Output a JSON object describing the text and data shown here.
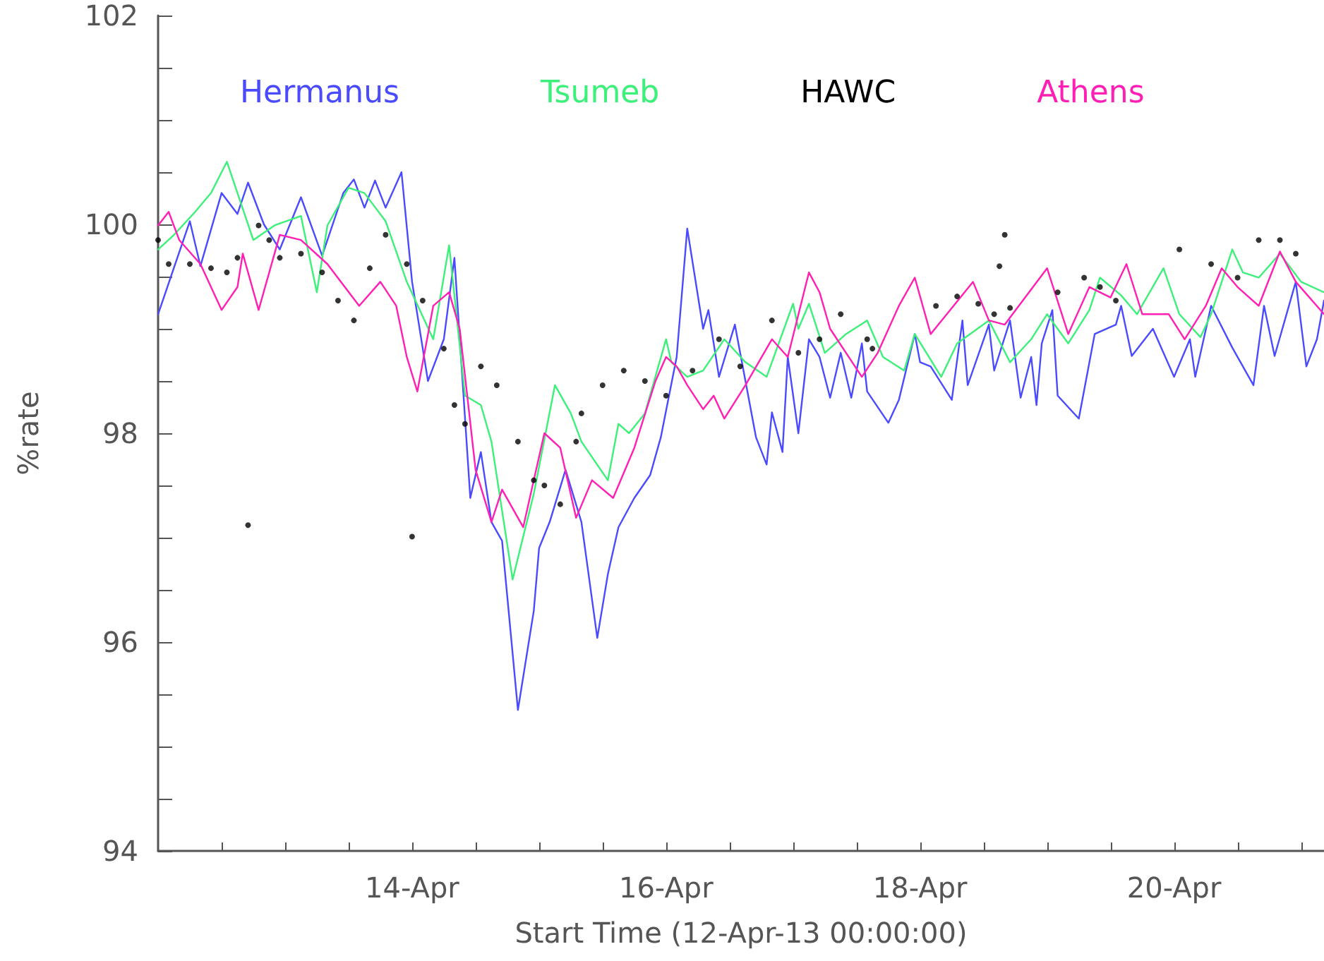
{
  "chart_data": {
    "type": "line",
    "xlabel": "Start Time (12-Apr-13 00:00:00)",
    "ylabel": "%rate",
    "xlim": [
      "--04-12T00:00",
      "--04-21T04:20"
    ],
    "ylim": [
      94,
      102
    ],
    "yticks": [
      94,
      {
        "value": 94.5,
        "label": null
      },
      {
        "value": 95,
        "label": null
      },
      {
        "value": 95.5,
        "label": null
      },
      96,
      {
        "value": 96.5,
        "label": null
      },
      {
        "value": 97,
        "label": null
      },
      {
        "value": 97.5,
        "label": null
      },
      98,
      {
        "value": 98.5,
        "label": null
      },
      {
        "value": 99,
        "label": null
      },
      {
        "value": 99.5,
        "label": null
      },
      100,
      {
        "value": 100.5,
        "label": null
      },
      {
        "value": 101,
        "label": null
      },
      {
        "value": 101.5,
        "label": null
      },
      102
    ],
    "xticks": [
      {
        "value": "--04-12T12:00",
        "label": null
      },
      {
        "value": "--04-13T00:00",
        "label": null
      },
      {
        "value": "--04-13T12:00",
        "label": null
      },
      {
        "value": "--04-14T00:00",
        "label": "14-Apr"
      },
      {
        "value": "--04-14T12:00",
        "label": null
      },
      {
        "value": "--04-15T00:00",
        "label": null
      },
      {
        "value": "--04-15T12:00",
        "label": null
      },
      {
        "value": "--04-16T00:00",
        "label": "16-Apr"
      },
      {
        "value": "--04-16T12:00",
        "label": null
      },
      {
        "value": "--04-17T00:00",
        "label": null
      },
      {
        "value": "--04-17T12:00",
        "label": null
      },
      {
        "value": "--04-18T00:00",
        "label": "18-Apr"
      },
      {
        "value": "--04-18T12:00",
        "label": null
      },
      {
        "value": "--04-19T00:00",
        "label": null
      },
      {
        "value": "--04-19T12:00",
        "label": null
      },
      {
        "value": "--04-20T00:00",
        "label": "20-Apr"
      },
      {
        "value": "--04-20T12:00",
        "label": null
      },
      {
        "value": "--04-21T00:00",
        "label": null
      }
    ],
    "grid": false,
    "legend": "top",
    "marker": "none",
    "series": [
      {
        "name": "Hermanus",
        "color": "#4a4aff",
        "x": [
          "--04-12T00:00",
          "--04-12T06:00",
          "--04-12T08:00",
          "--04-12T12:00",
          "--04-12T15:00",
          "--04-12T17:00",
          "--04-12T20:00",
          "--04-12T23:00",
          "--04-13T03:00",
          "--04-13T07:00",
          "--04-13T11:00",
          "--04-13T13:00",
          "--04-13T15:00",
          "--04-13T17:00",
          "--04-13T19:00",
          "--04-13T22:00",
          "--04-14T00:00",
          "--04-14T03:00",
          "--04-14T06:00",
          "--04-14T08:00",
          "--04-14T11:00",
          "--04-14T13:00",
          "--04-14T15:00",
          "--04-14T17:00",
          "--04-14T20:00",
          "--04-14T23:00",
          "--04-15T00:00",
          "--04-15T02:00",
          "--04-15T05:00",
          "--04-15T08:00",
          "--04-15T11:00",
          "--04-15T13:00",
          "--04-15T15:00",
          "--04-15T18:00",
          "--04-15T21:00",
          "--04-15T23:00",
          "--04-16T02:00",
          "--04-16T04:00",
          "--04-16T07:00",
          "--04-16T08:00",
          "--04-16T10:00",
          "--04-16T13:00",
          "--04-16T17:00",
          "--04-16T19:00",
          "--04-16T20:00",
          "--04-16T22:00",
          "--04-16T23:00",
          "--04-17T01:00",
          "--04-17T03:00",
          "--04-17T05:00",
          "--04-17T07:00",
          "--04-17T09:00",
          "--04-17T11:00",
          "--04-17T13:00",
          "--04-17T14:00",
          "--04-17T18:00",
          "--04-17T20:00",
          "--04-17T23:00",
          "--04-18T00:00",
          "--04-18T02:00",
          "--04-18T06:00",
          "--04-18T08:00",
          "--04-18T09:00",
          "--04-18T13:00",
          "--04-18T14:00",
          "--04-18T17:00",
          "--04-18T19:00",
          "--04-18T21:00",
          "--04-18T22:00",
          "--04-18T23:00",
          "--04-19T01:00",
          "--04-19T02:00",
          "--04-19T06:00",
          "--04-19T09:00",
          "--04-19T13:00",
          "--04-19T14:00",
          "--04-19T16:00",
          "--04-19T20:00",
          "--04-20T00:00",
          "--04-20T03:00",
          "--04-20T04:00",
          "--04-20T07:00",
          "--04-20T11:00",
          "--04-20T15:00",
          "--04-20T17:00",
          "--04-20T19:00",
          "--04-20T23:00",
          "--04-21T01:00",
          "--04-21T03:00",
          "--04-21T04:20"
        ],
        "values": [
          99.14,
          100.03,
          99.6,
          100.3,
          100.1,
          100.4,
          100.0,
          99.76,
          100.26,
          99.7,
          100.3,
          100.43,
          100.16,
          100.42,
          100.16,
          100.5,
          99.45,
          98.5,
          98.9,
          99.68,
          97.38,
          97.82,
          97.15,
          96.97,
          95.35,
          96.3,
          96.9,
          97.15,
          97.65,
          97.15,
          96.04,
          96.65,
          97.1,
          97.38,
          97.6,
          97.96,
          98.73,
          99.96,
          99.0,
          99.18,
          98.54,
          99.04,
          97.96,
          97.7,
          98.2,
          97.82,
          98.73,
          98.0,
          98.9,
          98.73,
          98.34,
          98.77,
          98.34,
          98.86,
          98.4,
          98.1,
          98.32,
          98.95,
          98.68,
          98.64,
          98.32,
          99.08,
          98.46,
          99.04,
          98.6,
          99.08,
          98.34,
          98.73,
          98.27,
          98.86,
          99.18,
          98.36,
          98.14,
          98.95,
          99.04,
          99.22,
          98.74,
          99.0,
          98.54,
          98.9,
          98.54,
          99.22,
          98.82,
          98.46,
          99.22,
          98.74,
          99.45,
          98.64,
          98.9,
          99.27
        ]
      },
      {
        "name": "Tsumeb",
        "color": "#3cf07a",
        "x": [
          "--04-12T00:00",
          "--04-12T03:00",
          "--04-12T07:00",
          "--04-12T10:00",
          "--04-12T13:00",
          "--04-12T18:00",
          "--04-12T22:00",
          "--04-13T03:00",
          "--04-13T06:00",
          "--04-13T08:00",
          "--04-13T12:00",
          "--04-13T15:00",
          "--04-13T19:00",
          "--04-13T23:00",
          "--04-14T04:00",
          "--04-14T07:00",
          "--04-14T10:00",
          "--04-14T13:00",
          "--04-14T15:00",
          "--04-14T19:00",
          "--04-14T23:00",
          "--04-15T03:00",
          "--04-15T06:00",
          "--04-15T08:00",
          "--04-15T13:00",
          "--04-15T15:00",
          "--04-15T17:00",
          "--04-15T20:00",
          "--04-16T00:00",
          "--04-16T01:00",
          "--04-16T04:00",
          "--04-16T07:00",
          "--04-16T11:00",
          "--04-16T15:00",
          "--04-16T19:00",
          "--04-17T00:00",
          "--04-17T01:00",
          "--04-17T03:00",
          "--04-17T06:00",
          "--04-17T10:00",
          "--04-17T14:00",
          "--04-17T17:00",
          "--04-17T21:00",
          "--04-17T23:00",
          "--04-18T04:00",
          "--04-18T07:00",
          "--04-18T13:00",
          "--04-18T17:00",
          "--04-18T21:00",
          "--04-19T00:00",
          "--04-19T04:00",
          "--04-19T08:00",
          "--04-19T10:00",
          "--04-19T14:00",
          "--04-19T17:00",
          "--04-19T22:00",
          "--04-20T01:00",
          "--04-20T05:00",
          "--04-20T07:00",
          "--04-20T11:00",
          "--04-20T13:00",
          "--04-20T16:00",
          "--04-20T20:00",
          "--04-21T00:00",
          "--04-21T04:20"
        ],
        "values": [
          99.76,
          99.9,
          100.12,
          100.3,
          100.6,
          99.85,
          99.99,
          100.08,
          99.35,
          99.99,
          100.35,
          100.3,
          100.03,
          99.45,
          98.9,
          99.8,
          98.36,
          98.27,
          97.92,
          96.6,
          97.42,
          98.46,
          98.19,
          97.92,
          97.55,
          98.09,
          98.0,
          98.19,
          98.9,
          98.68,
          98.54,
          98.6,
          98.9,
          98.68,
          98.54,
          99.24,
          99.0,
          99.24,
          98.77,
          98.95,
          99.08,
          98.73,
          98.6,
          98.95,
          98.54,
          98.86,
          99.08,
          98.68,
          98.9,
          99.14,
          98.86,
          99.18,
          99.49,
          99.32,
          99.14,
          99.58,
          99.14,
          98.92,
          99.14,
          99.76,
          99.54,
          99.49,
          99.72,
          99.45,
          99.35
        ]
      },
      {
        "name": "HAWC",
        "color": "#000000",
        "type": "scatter",
        "marker": "circle",
        "x": [
          "--04-12T00:00",
          "--04-12T02:00",
          "--04-12T06:00",
          "--04-12T10:00",
          "--04-12T13:00",
          "--04-12T15:00",
          "--04-12T17:00",
          "--04-12T19:00",
          "--04-12T21:00",
          "--04-12T23:00",
          "--04-13T03:00",
          "--04-13T07:00",
          "--04-13T10:00",
          "--04-13T13:00",
          "--04-13T16:00",
          "--04-13T19:00",
          "--04-13T23:00",
          "--04-14T00:00",
          "--04-14T02:00",
          "--04-14T06:00",
          "--04-14T08:00",
          "--04-14T10:00",
          "--04-14T13:00",
          "--04-14T16:00",
          "--04-14T20:00",
          "--04-14T23:00",
          "--04-15T01:00",
          "--04-15T04:00",
          "--04-15T07:00",
          "--04-15T08:00",
          "--04-15T12:00",
          "--04-15T16:00",
          "--04-15T20:00",
          "--04-16T00:00",
          "--04-16T05:00",
          "--04-16T10:00",
          "--04-16T14:00",
          "--04-16T20:00",
          "--04-17T01:00",
          "--04-17T05:00",
          "--04-17T09:00",
          "--04-17T14:00",
          "--04-17T15:00",
          "--04-18T03:00",
          "--04-18T07:00",
          "--04-18T11:00",
          "--04-18T14:00",
          "--04-18T15:00",
          "--04-18T16:00",
          "--04-18T17:00",
          "--04-19T02:00",
          "--04-19T07:00",
          "--04-19T10:00",
          "--04-19T13:00",
          "--04-20T01:00",
          "--04-20T07:00",
          "--04-20T12:00",
          "--04-20T16:00",
          "--04-20T20:00",
          "--04-20T23:00"
        ],
        "values": [
          99.85,
          99.62,
          99.62,
          99.58,
          99.54,
          99.68,
          97.12,
          99.99,
          99.85,
          99.68,
          99.72,
          99.54,
          99.27,
          99.08,
          99.58,
          99.9,
          99.62,
          97.01,
          99.27,
          98.81,
          98.27,
          98.09,
          98.64,
          98.46,
          97.92,
          97.55,
          97.5,
          97.32,
          97.92,
          98.19,
          98.46,
          98.6,
          98.5,
          98.36,
          98.6,
          98.9,
          98.64,
          99.08,
          98.77,
          98.9,
          99.14,
          98.9,
          98.81,
          99.22,
          99.31,
          99.24,
          99.14,
          99.6,
          99.9,
          99.2,
          99.35,
          99.49,
          99.4,
          99.27,
          99.76,
          99.62,
          99.49,
          99.85,
          99.85,
          99.72
        ]
      },
      {
        "name": "Athens",
        "color": "#ff1fb4",
        "x": [
          "--04-12T00:00",
          "--04-12T02:00",
          "--04-12T04:00",
          "--04-12T08:00",
          "--04-12T12:00",
          "--04-12T15:00",
          "--04-12T16:00",
          "--04-12T19:00",
          "--04-12T23:00",
          "--04-13T03:00",
          "--04-13T08:00",
          "--04-13T14:00",
          "--04-13T18:00",
          "--04-13T21:00",
          "--04-13T23:00",
          "--04-14T01:00",
          "--04-14T04:00",
          "--04-14T07:00",
          "--04-14T09:00",
          "--04-14T12:00",
          "--04-14T15:00",
          "--04-14T17:00",
          "--04-14T21:00",
          "--04-15T01:00",
          "--04-15T04:00",
          "--04-15T07:00",
          "--04-15T10:00",
          "--04-15T14:00",
          "--04-15T18:00",
          "--04-15T22:00",
          "--04-16T00:00",
          "--04-16T02:00",
          "--04-16T04:00",
          "--04-16T07:00",
          "--04-16T09:00",
          "--04-16T11:00",
          "--04-16T15:00",
          "--04-16T20:00",
          "--04-16T23:00",
          "--04-17T03:00",
          "--04-17T05:00",
          "--04-17T07:00",
          "--04-17T13:00",
          "--04-17T16:00",
          "--04-17T20:00",
          "--04-17T23:00",
          "--04-18T02:00",
          "--04-18T10:00",
          "--04-18T13:00",
          "--04-18T16:00",
          "--04-19T00:00",
          "--04-19T04:00",
          "--04-19T08:00",
          "--04-19T12:00",
          "--04-19T15:00",
          "--04-19T18:00",
          "--04-19T23:00",
          "--04-20T02:00",
          "--04-20T06:00",
          "--04-20T09:00",
          "--04-20T12:00",
          "--04-20T16:00",
          "--04-20T20:00",
          "--04-20T23:00",
          "--04-21T04:20"
        ],
        "values": [
          99.99,
          100.12,
          99.85,
          99.62,
          99.18,
          99.4,
          99.72,
          99.18,
          99.9,
          99.85,
          99.62,
          99.22,
          99.45,
          99.22,
          98.73,
          98.4,
          99.22,
          99.35,
          99.0,
          97.65,
          97.15,
          97.46,
          97.1,
          98.0,
          97.86,
          97.19,
          97.55,
          97.38,
          97.86,
          98.5,
          98.73,
          98.64,
          98.46,
          98.23,
          98.36,
          98.14,
          98.46,
          98.9,
          98.73,
          99.54,
          99.35,
          99.0,
          98.54,
          98.77,
          99.22,
          99.49,
          98.95,
          99.45,
          99.08,
          99.04,
          99.58,
          98.95,
          99.4,
          99.3,
          99.62,
          99.14,
          99.14,
          98.9,
          99.22,
          99.58,
          99.4,
          99.22,
          99.74,
          99.45,
          99.14
        ]
      }
    ]
  }
}
